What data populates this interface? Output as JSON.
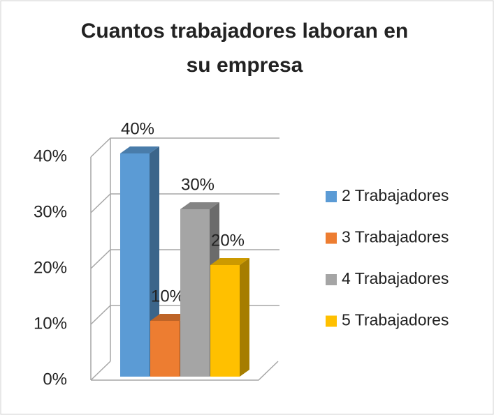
{
  "chart_data": {
    "type": "bar3d",
    "title": [
      "Cuantos trabajadores laboran en",
      "su empresa"
    ],
    "series": [
      {
        "name": "2 Trabajadores",
        "color": "#5b9bd5",
        "values": [
          40
        ],
        "value_labels": [
          "40%"
        ]
      },
      {
        "name": "3 Trabajadores",
        "color": "#ed7d31",
        "values": [
          10
        ],
        "value_labels": [
          "10%"
        ]
      },
      {
        "name": "4 Trabajadores",
        "color": "#a5a5a5",
        "values": [
          30
        ],
        "value_labels": [
          "30%"
        ]
      },
      {
        "name": "5 Trabajadores",
        "color": "#ffc000",
        "values": [
          20
        ],
        "value_labels": [
          "20%"
        ]
      }
    ],
    "ylim": [
      0,
      40
    ],
    "yticks": [
      {
        "value": 0,
        "label": "0%"
      },
      {
        "value": 10,
        "label": "10%"
      },
      {
        "value": 20,
        "label": "20%"
      },
      {
        "value": 30,
        "label": "30%"
      },
      {
        "value": 40,
        "label": "40%"
      }
    ],
    "grid": true,
    "legend": "right"
  }
}
